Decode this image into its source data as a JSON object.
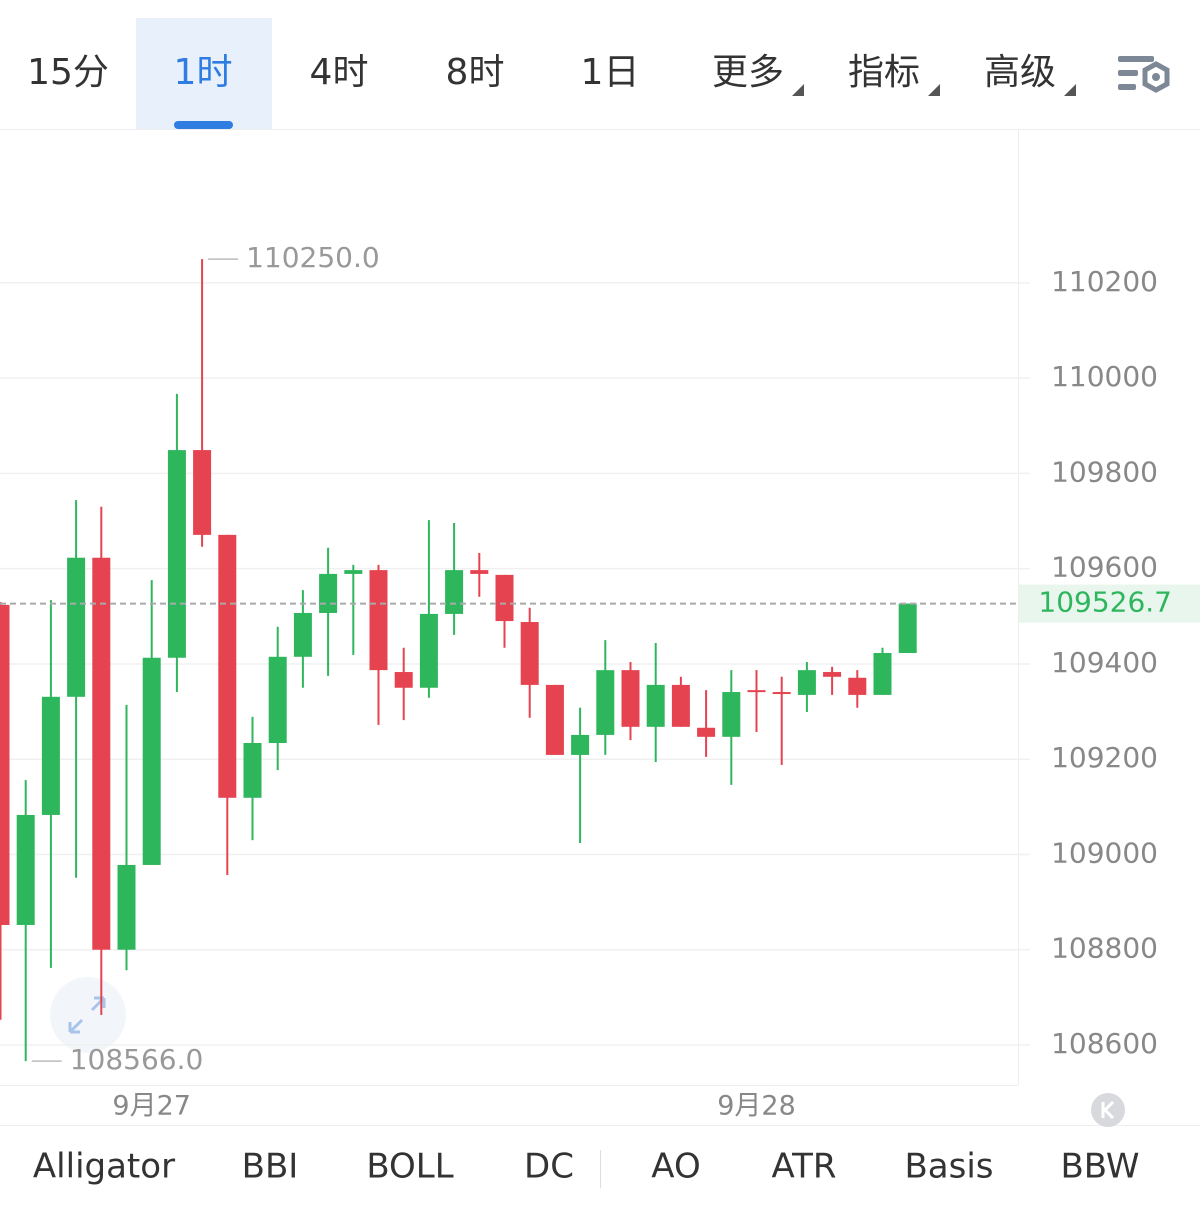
{
  "tabs": [
    "15分",
    "1时",
    "4时",
    "8时",
    "1日",
    "更多",
    "指标",
    "高级"
  ],
  "active_tab": "1时",
  "indicators": [
    "Alligator",
    "BBI",
    "BOLL",
    "DC",
    "AO",
    "ATR",
    "Basis",
    "BBW"
  ],
  "chart_data": {
    "type": "candlestick",
    "categories": [
      null,
      null,
      null,
      null,
      null,
      null,
      "9月27",
      null,
      null,
      null,
      null,
      null,
      null,
      null,
      null,
      null,
      null,
      null,
      null,
      null,
      null,
      null,
      null,
      null,
      null,
      null,
      null,
      null,
      null,
      null,
      "9月28",
      null,
      null,
      null,
      null,
      null,
      null
    ],
    "open": [
      109524,
      108852,
      109083,
      109331,
      109623,
      108800,
      108978,
      109413,
      109849,
      109671,
      109119,
      109234,
      109415,
      109507,
      109589,
      109597,
      109383,
      109350,
      109505,
      109597,
      109587,
      109488,
      109356,
      109209,
      109251,
      109387,
      109268,
      109356,
      109266,
      109247,
      109345,
      109341,
      109335,
      109383,
      109371,
      109335,
      109423
    ],
    "high": [
      109530,
      109156,
      109534,
      109744,
      109730,
      109314,
      109576,
      109967,
      110250,
      109671,
      109289,
      109478,
      109555,
      109644,
      109608,
      109608,
      109434,
      109702,
      109696,
      109633,
      109587,
      109518,
      109356,
      109308,
      109450,
      109404,
      109444,
      109373,
      109345,
      109387,
      109387,
      109373,
      109404,
      109394,
      109387,
      109434,
      109526.7
    ],
    "low": [
      108653,
      108566,
      108762,
      108951,
      108663,
      108757,
      108978,
      109341,
      109646,
      108957,
      109030,
      109177,
      109350,
      109375,
      109419,
      109272,
      109282,
      109329,
      109461,
      109541,
      109434,
      109287,
      109209,
      109024,
      109209,
      109240,
      109194,
      109268,
      109205,
      109146,
      109257,
      109188,
      109299,
      109335,
      109308,
      109335,
      109423
    ],
    "close": [
      108852,
      109083,
      109331,
      109623,
      108800,
      108978,
      109413,
      109849,
      109671,
      109119,
      109234,
      109415,
      109507,
      109589,
      109597,
      109387,
      109350,
      109505,
      109597,
      109589,
      109490,
      109356,
      109209,
      109251,
      109387,
      109268,
      109356,
      109268,
      109247,
      109341,
      109341,
      109337,
      109387,
      109373,
      109335,
      109423,
      109526.7
    ],
    "up_color": "#2eb65c",
    "down_color": "#e5434f",
    "ylim": [
      108516,
      110521
    ],
    "yticks": [
      108600,
      108800,
      109000,
      109200,
      109400,
      109600,
      109800,
      110000,
      110200
    ],
    "grid": true,
    "annotations": [
      {
        "value": 110250,
        "label": "110250.0"
      },
      {
        "value": 108566,
        "label": "108566.0"
      }
    ]
  }
}
